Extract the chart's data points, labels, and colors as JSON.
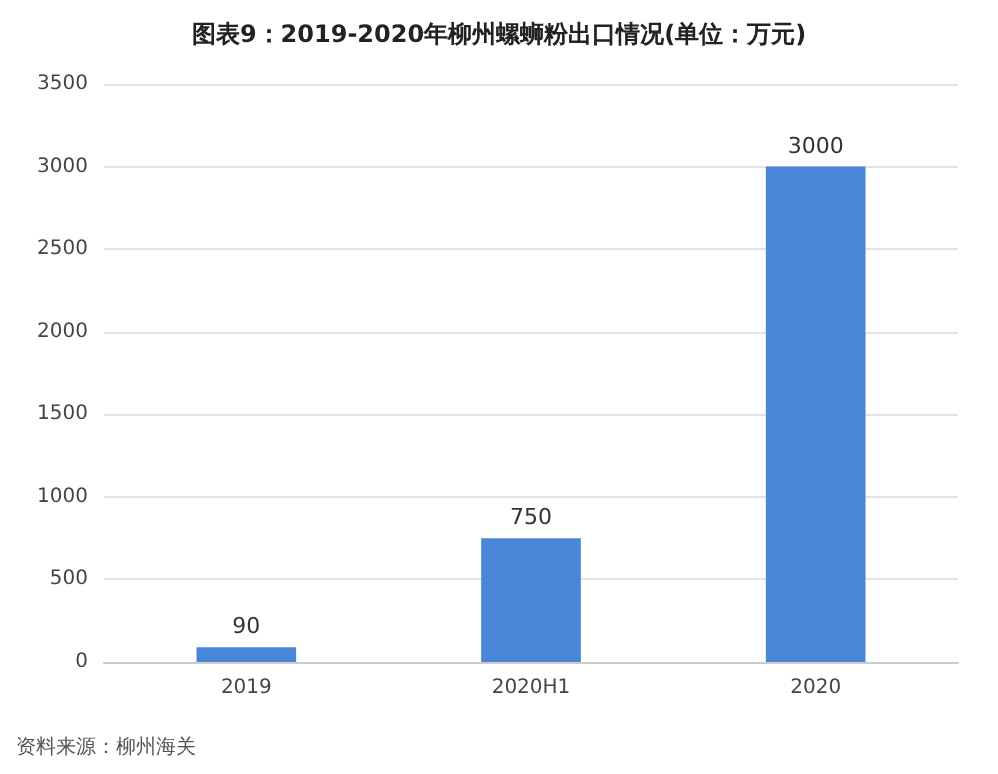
{
  "chart_data": {
    "type": "bar",
    "title": "图表9：2019-2020年柳州螺蛳粉出口情况(单位：万元)",
    "categories": [
      "2019",
      "2020H1",
      "2020"
    ],
    "values": [
      90,
      750,
      3000
    ],
    "color": "#4a86d8",
    "ylim": [
      0,
      3500
    ],
    "yticks": [
      0,
      500,
      1000,
      1500,
      2000,
      2500,
      3000,
      3500
    ],
    "grid": "y",
    "data_labels": true,
    "annotations": [
      "资料来源：柳州海关"
    ]
  }
}
